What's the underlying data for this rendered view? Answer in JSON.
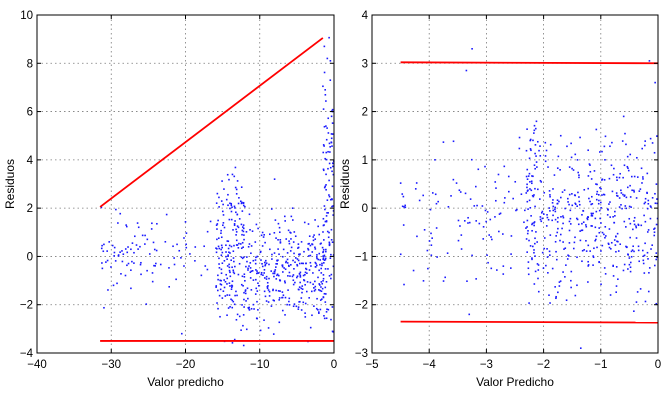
{
  "chart_data": [
    {
      "type": "scatter",
      "xlabel": "Valor predicho",
      "ylabel": "Residuos",
      "xlim": [
        -40,
        0
      ],
      "ylim": [
        -4,
        10
      ],
      "xticks": [
        -40,
        -30,
        -20,
        -10,
        0
      ],
      "yticks": [
        -4,
        -2,
        0,
        2,
        4,
        6,
        8,
        10
      ],
      "grid": true,
      "point_color": "#1a1aff",
      "line_color": "#ff0000",
      "lines": [
        {
          "x": [
            -31.5,
            -1.5
          ],
          "y": [
            2.05,
            9.05
          ]
        },
        {
          "x": [
            -31.5,
            0
          ],
          "y": [
            -3.5,
            -3.5
          ]
        }
      ],
      "clusters": [
        {
          "x_range": [
            -31.5,
            -24
          ],
          "y_range": [
            -1.8,
            2.1
          ],
          "n": 70,
          "seed": 11
        },
        {
          "x_range": [
            -24,
            -16.5
          ],
          "y_range": [
            -1.5,
            1.8
          ],
          "n": 30,
          "seed": 12
        },
        {
          "x_range": [
            -16,
            -12
          ],
          "y_range": [
            -3.3,
            3.8
          ],
          "n": 200,
          "seed": 13
        },
        {
          "x_range": [
            -12,
            -1
          ],
          "y_range": [
            -3.2,
            1.9
          ],
          "n": 360,
          "seed": 14
        },
        {
          "x_range": [
            -1.5,
            0
          ],
          "y_range": [
            -3.8,
            8.7
          ],
          "n": 110,
          "seed": 15
        }
      ],
      "outliers": [
        {
          "x": -1.3,
          "y": 8.7
        },
        {
          "x": -0.9,
          "y": 8.2
        },
        {
          "x": -0.5,
          "y": 7.3
        },
        {
          "x": -0.2,
          "y": 6.0
        },
        {
          "x": -20.5,
          "y": -3.2
        },
        {
          "x": -8,
          "y": 3.2
        }
      ]
    },
    {
      "type": "scatter",
      "xlabel": "Valor Predicho",
      "ylabel": "Residuos",
      "xlim": [
        -5,
        0
      ],
      "ylim": [
        -3,
        4
      ],
      "xticks": [
        -5,
        -4,
        -3,
        -2,
        -1,
        0
      ],
      "yticks": [
        -3,
        -2,
        -1,
        0,
        1,
        2,
        3,
        4
      ],
      "grid": true,
      "point_color": "#1a1aff",
      "line_color": "#ff0000",
      "lines": [
        {
          "x": [
            -4.5,
            0
          ],
          "y": [
            3.02,
            3.0
          ]
        },
        {
          "x": [
            -4.5,
            0
          ],
          "y": [
            -2.35,
            -2.37
          ]
        }
      ],
      "clusters": [
        {
          "x_range": [
            -4.5,
            -2.3
          ],
          "y_range": [
            -1.6,
            1.4
          ],
          "n": 110,
          "seed": 21
        },
        {
          "x_range": [
            -2.3,
            -2.05
          ],
          "y_range": [
            -1.9,
            2.2
          ],
          "n": 90,
          "seed": 22
        },
        {
          "x_range": [
            -2.05,
            0
          ],
          "y_range": [
            -2.0,
            1.6
          ],
          "n": 420,
          "seed": 23
        }
      ],
      "outliers": [
        {
          "x": -3.25,
          "y": 3.3
        },
        {
          "x": -3.35,
          "y": 2.85
        },
        {
          "x": -0.15,
          "y": 3.05
        },
        {
          "x": -0.05,
          "y": 2.6
        },
        {
          "x": -1.35,
          "y": -2.9
        },
        {
          "x": -3.3,
          "y": -2.2
        },
        {
          "x": -1.7,
          "y": 1.5
        },
        {
          "x": -0.6,
          "y": 1.9
        }
      ]
    }
  ]
}
